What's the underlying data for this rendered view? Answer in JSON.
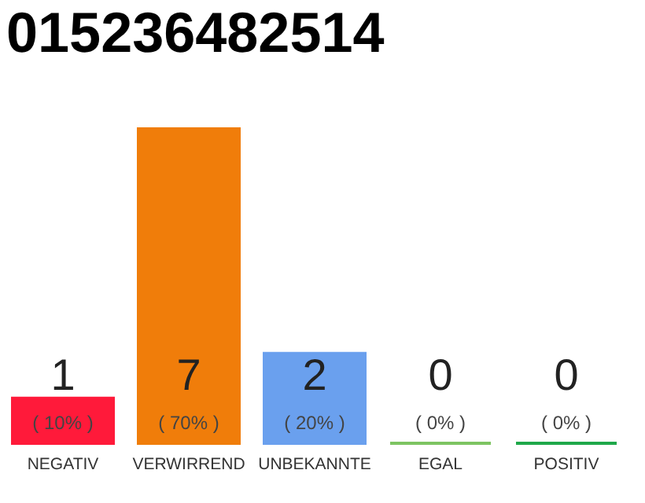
{
  "chart_data": {
    "type": "bar",
    "title": "015236482514",
    "categories": [
      "NEGATIV",
      "VERWIRREND",
      "UNBEKANNTE",
      "EGAL",
      "POSITIV"
    ],
    "values": [
      1,
      7,
      2,
      0,
      0
    ],
    "colors": [
      "#ff1a3a",
      "#f07d0a",
      "#6aa0ee",
      "#7dc462",
      "#1fa84a"
    ],
    "ylim": [
      0,
      7
    ],
    "tick_labels": "x",
    "grid": false,
    "data_labels": true,
    "annotations": [
      "( 10% )",
      "( 70% )",
      "( 20% )",
      "( 0% )",
      "( 0% )"
    ]
  }
}
